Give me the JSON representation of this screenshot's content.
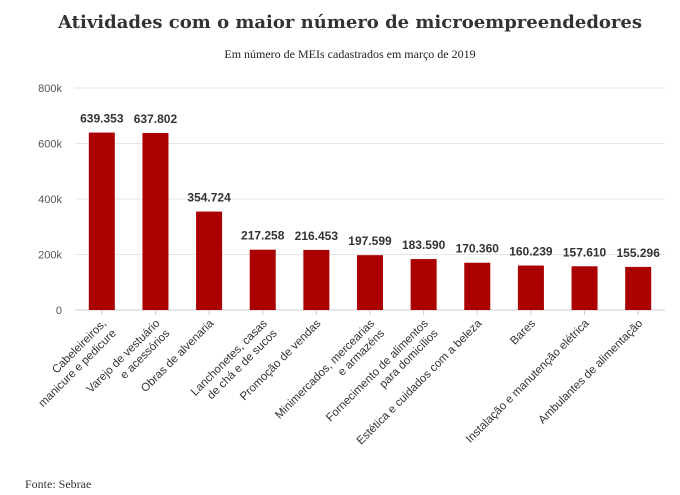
{
  "chart_data": {
    "type": "bar",
    "title": "Atividades com o maior número de microempreendedores",
    "subtitle": "Em número de MEIs cadastrados em março de 2019",
    "source": "Fonte: Sebrae",
    "color": "#aa0000",
    "ylim": [
      0,
      800000
    ],
    "yticks": [
      0,
      200000,
      400000,
      600000,
      800000
    ],
    "ytick_labels": [
      "0",
      "200k",
      "400k",
      "600k",
      "800k"
    ],
    "grid": true,
    "categories": [
      [
        "Cabeleireiros,",
        "manicure e pedicure"
      ],
      [
        "Varejo de vestuário",
        "e acessórios"
      ],
      [
        "Obras de alvenaria"
      ],
      [
        "Lanchonetes, casas",
        "de chá e de sucos"
      ],
      [
        "Promoção de vendas"
      ],
      [
        "Minimercados, mercearias",
        "e armazéns"
      ],
      [
        "Fornecimento de alimentos",
        "para domicílios"
      ],
      [
        "Estética e cuidados com a beleza"
      ],
      [
        "Bares"
      ],
      [
        "Instalação e manutenção elétrica"
      ],
      [
        "Ambulantes de alimentação"
      ]
    ],
    "values": [
      639353,
      637802,
      354724,
      217258,
      216453,
      197599,
      183590,
      170360,
      160239,
      157610,
      155296
    ],
    "value_labels": [
      "639.353",
      "637.802",
      "354.724",
      "217.258",
      "216.453",
      "197.599",
      "183.590",
      "170.360",
      "160.239",
      "157.610",
      "155.296"
    ]
  }
}
